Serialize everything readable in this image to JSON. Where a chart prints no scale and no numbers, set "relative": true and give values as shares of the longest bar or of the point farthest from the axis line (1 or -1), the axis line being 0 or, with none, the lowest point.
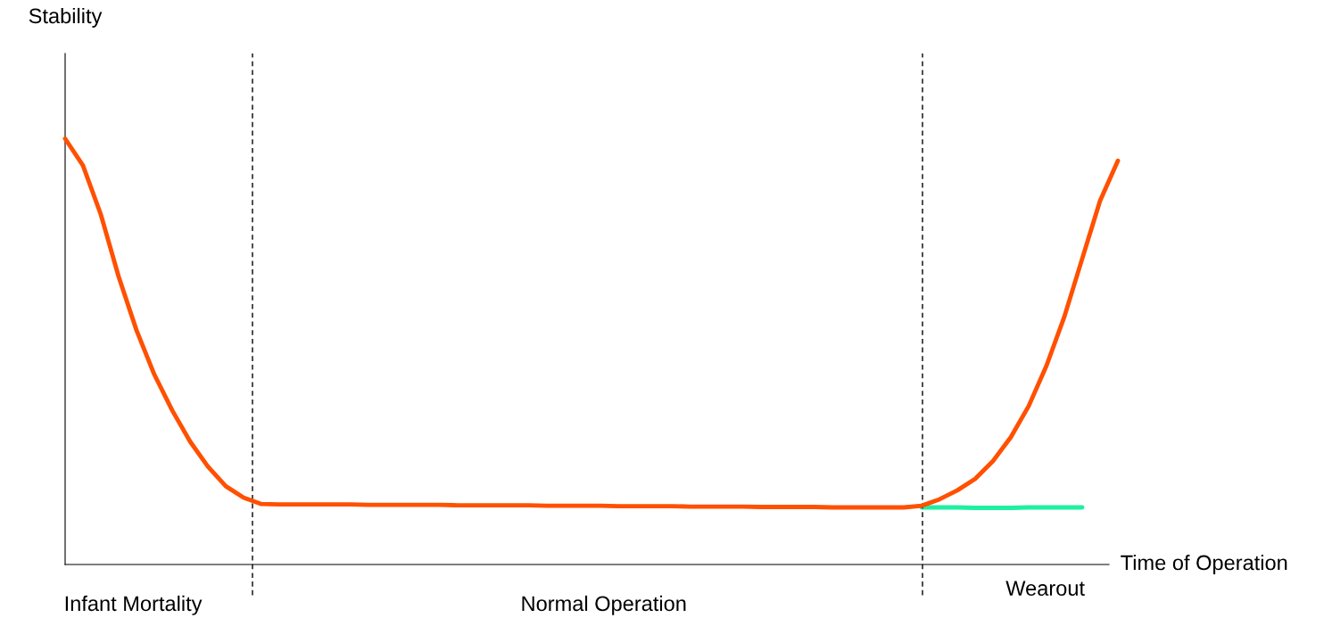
{
  "chart_data": {
    "type": "line",
    "relative": true,
    "xlabel": "Time of Operation",
    "categories": [
      null,
      null,
      null,
      null,
      null,
      null,
      null,
      null,
      null,
      null,
      null,
      null,
      null,
      null,
      null,
      null,
      null,
      null,
      null,
      null,
      null,
      null,
      null,
      null,
      null,
      null,
      null,
      null,
      null,
      null,
      null,
      null,
      null,
      null,
      null,
      null,
      null,
      null,
      null,
      null,
      null,
      null,
      null,
      null,
      null,
      null,
      null,
      null,
      null,
      null,
      null,
      null,
      null,
      null,
      null,
      null,
      null,
      null,
      null,
      null
    ],
    "series": [
      {
        "color": "#ff5000",
        "values": [
          1.0,
          0.937,
          0.822,
          0.676,
          0.55,
          0.446,
          0.362,
          0.289,
          0.23,
          0.184,
          0.157,
          0.142,
          0.141,
          0.141,
          0.141,
          0.141,
          0.141,
          0.14,
          0.14,
          0.14,
          0.14,
          0.14,
          0.139,
          0.139,
          0.139,
          0.139,
          0.139,
          0.138,
          0.138,
          0.138,
          0.138,
          0.137,
          0.137,
          0.137,
          0.137,
          0.136,
          0.136,
          0.136,
          0.136,
          0.135,
          0.135,
          0.135,
          0.135,
          0.134,
          0.134,
          0.134,
          0.134,
          0.134,
          0.138,
          0.153,
          0.174,
          0.201,
          0.243,
          0.299,
          0.372,
          0.467,
          0.582,
          0.718,
          0.854,
          0.948
        ]
      },
      {
        "color": "#1ef0a0",
        "values": [
          null,
          null,
          null,
          null,
          null,
          null,
          null,
          null,
          null,
          null,
          null,
          null,
          null,
          null,
          null,
          null,
          null,
          null,
          null,
          null,
          null,
          null,
          null,
          null,
          null,
          null,
          null,
          null,
          null,
          null,
          null,
          null,
          null,
          null,
          null,
          null,
          null,
          null,
          null,
          null,
          null,
          null,
          null,
          null,
          null,
          null,
          null,
          null,
          0.134,
          0.134,
          0.134,
          0.133,
          0.133,
          0.133,
          0.134,
          0.134,
          0.134,
          0.134,
          null,
          null
        ]
      }
    ],
    "annotations": [
      "Infant Mortality",
      "Normal Operation",
      "Wearout",
      "Stability"
    ]
  }
}
